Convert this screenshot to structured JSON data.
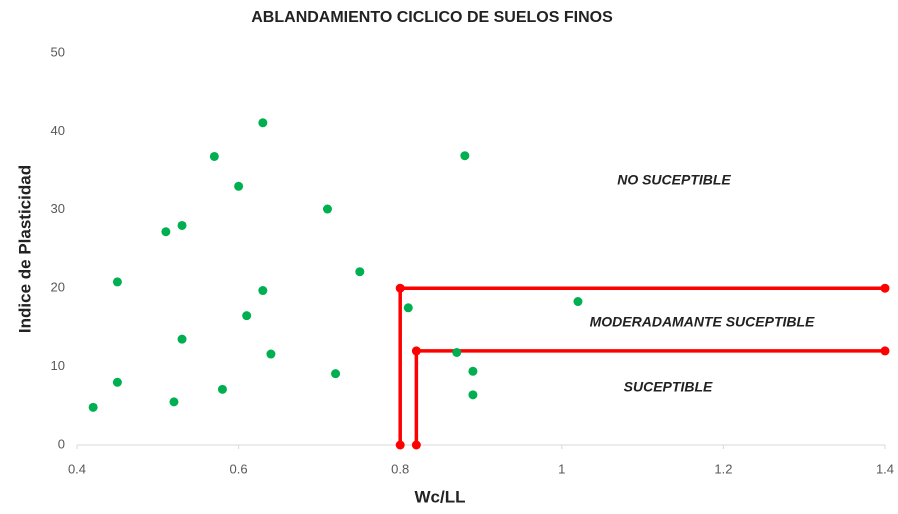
{
  "chart_data": {
    "type": "scatter",
    "title": "ABLANDAMIENTO CICLICO DE SUELOS FINOS",
    "x_label": "Wc/LL",
    "y_label": "Indice de Plasticidad",
    "x": [
      0.42,
      0.45,
      0.45,
      0.51,
      0.52,
      0.53,
      0.53,
      0.57,
      0.58,
      0.6,
      0.61,
      0.63,
      0.63,
      0.64,
      0.71,
      0.72,
      0.75,
      0.81,
      0.87,
      0.88,
      0.89,
      0.89,
      1.02
    ],
    "y": [
      4.8,
      20.8,
      8.0,
      27.2,
      5.5,
      28.0,
      13.5,
      36.8,
      7.1,
      33.0,
      16.5,
      41.1,
      19.7,
      11.6,
      30.1,
      9.1,
      22.1,
      17.5,
      11.8,
      36.9,
      9.4,
      6.4,
      18.3
    ],
    "color": "#00b050",
    "lines": [
      {
        "x": [
          0.8,
          0.8,
          1.4
        ],
        "y": [
          0,
          20,
          20
        ],
        "color": "#ff0000"
      },
      {
        "x": [
          0.82,
          0.82,
          1.4
        ],
        "y": [
          0,
          12,
          12
        ],
        "color": "#ff0000"
      }
    ],
    "annotations": [
      "NO SUCEPTIBLE",
      "MODERADAMANTE SUCEPTIBLE",
      "SUCEPTIBLE"
    ],
    "xlim": [
      0.4,
      1.4
    ],
    "xticks": [
      0.4,
      0.6,
      0.8,
      1,
      1.2,
      1.4
    ],
    "ylim": [
      0,
      50
    ],
    "yticks": [
      0,
      10,
      20,
      30,
      40,
      50
    ],
    "grid": false
  }
}
